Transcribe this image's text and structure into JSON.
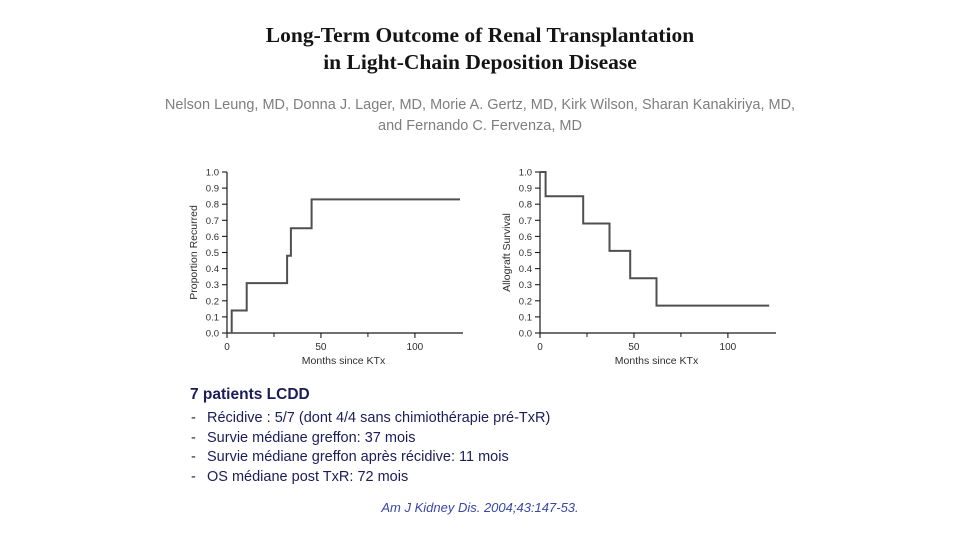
{
  "title": {
    "line1": "Long-Term Outcome of Renal Transplantation",
    "line2": "in Light-Chain Deposition Disease"
  },
  "authors": {
    "line1": "Nelson Leung, MD, Donna J. Lager, MD, Morie A. Gertz, MD, Kirk Wilson, Sharan Kanakiriya, MD,",
    "line2": "and Fernando C. Fervenza, MD"
  },
  "chart_data": [
    {
      "type": "line",
      "subtype": "kaplan-meier-step",
      "name": "proportion-recurred",
      "title": "",
      "xlabel": "Months since KTx",
      "ylabel": "Proportion Recurred",
      "xlim": [
        0,
        124
      ],
      "ylim": [
        0,
        1
      ],
      "xticks": [
        0,
        50,
        100
      ],
      "xticks_minor": [
        25,
        75
      ],
      "ytick_labels": [
        "0.0",
        "0.1",
        "0.2",
        "0.3",
        "0.4",
        "0.5",
        "0.6",
        "0.7",
        "0.8",
        "0.9",
        "1.0"
      ],
      "grid": false,
      "legend": "none",
      "points": [
        [
          2.5,
          0
        ],
        [
          2.5,
          0.14
        ],
        [
          10.5,
          0.14
        ],
        [
          10.5,
          0.31
        ],
        [
          32,
          0.31
        ],
        [
          32,
          0.48
        ],
        [
          34,
          0.48
        ],
        [
          34,
          0.65
        ],
        [
          45,
          0.65
        ],
        [
          45,
          0.83
        ],
        [
          124,
          0.83
        ]
      ]
    },
    {
      "type": "line",
      "subtype": "kaplan-meier-step",
      "name": "allograft-survival",
      "title": "",
      "xlabel": "Months since KTx",
      "ylabel": "Allograft Survival",
      "xlim": [
        0,
        124
      ],
      "ylim": [
        0,
        1
      ],
      "xticks": [
        0,
        50,
        100
      ],
      "xticks_minor": [
        25,
        75
      ],
      "ytick_labels": [
        "0.0",
        "0.1",
        "0.2",
        "0.3",
        "0.4",
        "0.5",
        "0.6",
        "0.7",
        "0.8",
        "0.9",
        "1.0"
      ],
      "grid": false,
      "legend": "none",
      "points": [
        [
          0,
          1.0
        ],
        [
          3,
          1.0
        ],
        [
          3,
          0.85
        ],
        [
          23,
          0.85
        ],
        [
          23,
          0.68
        ],
        [
          37,
          0.68
        ],
        [
          37,
          0.51
        ],
        [
          48,
          0.51
        ],
        [
          48,
          0.34
        ],
        [
          62,
          0.34
        ],
        [
          62,
          0.17
        ],
        [
          122,
          0.17
        ]
      ]
    }
  ],
  "notes": {
    "heading": "7 patients LCDD",
    "items": [
      "Récidive : 5/7 (dont 4/4 sans chimiothérapie pré-TxR)",
      "Survie médiane greffon: 37 mois",
      "Survie médiane greffon après récidive: 11 mois",
      "OS médiane post TxR: 72 mois"
    ]
  },
  "citation": {
    "text": "Am J Kidney Dis. 2004;43:147-53."
  },
  "colors": {
    "title_black": "#141414",
    "authors_gray": "#7e7e7e",
    "notes_navy": "#1c1c5a",
    "citation_blue": "#3a46a8",
    "curve_gray": "#4f4f4f",
    "axis_black": "#1a1a1a"
  }
}
